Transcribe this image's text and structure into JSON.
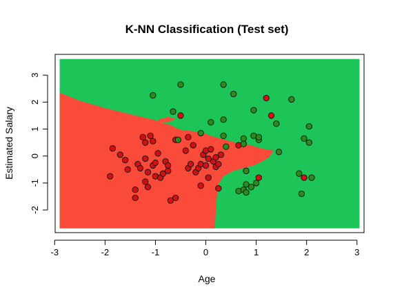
{
  "chart_data": {
    "type": "scatter",
    "title": "K-NN Classification (Test set)",
    "xlabel": "Age",
    "ylabel": "Estimated Salary",
    "xlim": [
      -2.99,
      3.14
    ],
    "ylim": [
      -2.84,
      3.77
    ],
    "xticks": [
      -3,
      -2,
      -1,
      0,
      1,
      2,
      3
    ],
    "yticks": [
      -2,
      -1,
      0,
      1,
      2,
      3
    ],
    "grid": false,
    "colors": {
      "region_class_0": "#FA4A39",
      "region_class_1": "#1DC558",
      "point_class_0": "#D20F12",
      "point_class_1": "#2A8A1E",
      "point_edge": "#111111",
      "axis": "#000000"
    },
    "decision_region": {
      "x_range": [
        -2.9,
        3.05
      ],
      "y_range": [
        -2.68,
        3.6
      ],
      "class_0_boundary_polygon": [
        [
          -2.9,
          2.35
        ],
        [
          -2.5,
          2.05
        ],
        [
          -2.0,
          1.78
        ],
        [
          -1.5,
          1.55
        ],
        [
          -1.05,
          1.35
        ],
        [
          -0.7,
          1.15
        ],
        [
          -0.52,
          0.98
        ],
        [
          -0.3,
          0.93
        ],
        [
          -0.05,
          0.85
        ],
        [
          0.15,
          0.72
        ],
        [
          0.35,
          0.62
        ],
        [
          0.55,
          0.52
        ],
        [
          0.7,
          0.45
        ],
        [
          0.9,
          0.4
        ],
        [
          1.1,
          0.28
        ],
        [
          1.35,
          0.2
        ],
        [
          1.25,
          -0.05
        ],
        [
          1.1,
          -0.22
        ],
        [
          0.95,
          -0.35
        ],
        [
          0.75,
          -0.45
        ],
        [
          0.55,
          -0.55
        ],
        [
          0.35,
          -0.75
        ],
        [
          0.25,
          -1.05
        ],
        [
          0.22,
          -1.5
        ],
        [
          0.2,
          -2.0
        ],
        [
          0.18,
          -2.68
        ],
        [
          -2.9,
          -2.68
        ]
      ]
    },
    "series": [
      {
        "class": 0,
        "points": [
          [
            -1.9,
            -0.75
          ],
          [
            -1.85,
            0.28
          ],
          [
            -1.7,
            0.05
          ],
          [
            -1.6,
            -0.15
          ],
          [
            -1.55,
            -0.5
          ],
          [
            -1.4,
            -1.25
          ],
          [
            -1.4,
            -1.55
          ],
          [
            -1.35,
            -0.3
          ],
          [
            -1.3,
            -0.45
          ],
          [
            -1.2,
            -0.95
          ],
          [
            -1.25,
            0.7
          ],
          [
            -1.2,
            0.5
          ],
          [
            -1.2,
            -0.1
          ],
          [
            -1.15,
            -0.6
          ],
          [
            -1.15,
            -1.15
          ],
          [
            -1.1,
            0.75
          ],
          [
            -1.05,
            0.55
          ],
          [
            -1.05,
            -0.35
          ],
          [
            -1.0,
            -0.25
          ],
          [
            -1.0,
            -0.75
          ],
          [
            -0.95,
            0.1
          ],
          [
            -0.9,
            -0.8
          ],
          [
            -0.85,
            -0.65
          ],
          [
            -0.8,
            -0.2
          ],
          [
            -0.75,
            -0.55
          ],
          [
            -0.75,
            -0.35
          ],
          [
            -0.7,
            -1.65
          ],
          [
            -0.6,
            -1.55
          ],
          [
            -0.6,
            0.6
          ],
          [
            -0.5,
            1.5
          ],
          [
            -0.4,
            0.2
          ],
          [
            -0.35,
            -0.45
          ],
          [
            -0.35,
            0.7
          ],
          [
            -0.3,
            -0.3
          ],
          [
            -0.25,
            0.4
          ],
          [
            -0.2,
            -0.6
          ],
          [
            -0.15,
            -0.45
          ],
          [
            -0.1,
            -1.1
          ],
          [
            -0.1,
            -0.3
          ],
          [
            -0.05,
            0.05
          ],
          [
            0.0,
            -0.35
          ],
          [
            0.0,
            0.2
          ],
          [
            0.05,
            -0.1
          ],
          [
            0.05,
            -0.8
          ],
          [
            0.1,
            0.25
          ],
          [
            0.15,
            -0.2
          ],
          [
            0.2,
            -0.4
          ],
          [
            0.2,
            -0.05
          ],
          [
            0.25,
            -0.3
          ],
          [
            0.3,
            0.05
          ],
          [
            0.25,
            -1.2
          ],
          [
            0.65,
            0.4
          ],
          [
            0.8,
            -0.55
          ],
          [
            1.05,
            -0.8
          ],
          [
            1.2,
            2.15
          ],
          [
            1.3,
            1.5
          ],
          [
            1.95,
            -0.8
          ]
        ]
      },
      {
        "class": 1,
        "points": [
          [
            -1.05,
            2.25
          ],
          [
            -0.65,
            1.65
          ],
          [
            -0.5,
            2.65
          ],
          [
            -0.55,
            0.6
          ],
          [
            -0.1,
            0.85
          ],
          [
            0.1,
            1.25
          ],
          [
            0.35,
            2.65
          ],
          [
            0.35,
            1.35
          ],
          [
            0.35,
            0.75
          ],
          [
            0.4,
            0.35
          ],
          [
            0.55,
            2.3
          ],
          [
            0.75,
            0.65
          ],
          [
            0.75,
            0.45
          ],
          [
            0.8,
            -0.55
          ],
          [
            0.8,
            -1.05
          ],
          [
            0.65,
            -1.3
          ],
          [
            0.75,
            -1.25
          ],
          [
            0.8,
            -1.35
          ],
          [
            0.9,
            -1.15
          ],
          [
            0.95,
            0.75
          ],
          [
            0.95,
            1.7
          ],
          [
            1.0,
            -1.0
          ],
          [
            1.05,
            0.6
          ],
          [
            1.05,
            0.7
          ],
          [
            1.4,
            1.2
          ],
          [
            1.45,
            0.15
          ],
          [
            1.7,
            2.1
          ],
          [
            1.85,
            -0.65
          ],
          [
            1.9,
            -1.4
          ],
          [
            1.95,
            0.65
          ],
          [
            2.05,
            0.5
          ],
          [
            2.05,
            1.1
          ],
          [
            2.1,
            -0.8
          ]
        ]
      }
    ]
  }
}
